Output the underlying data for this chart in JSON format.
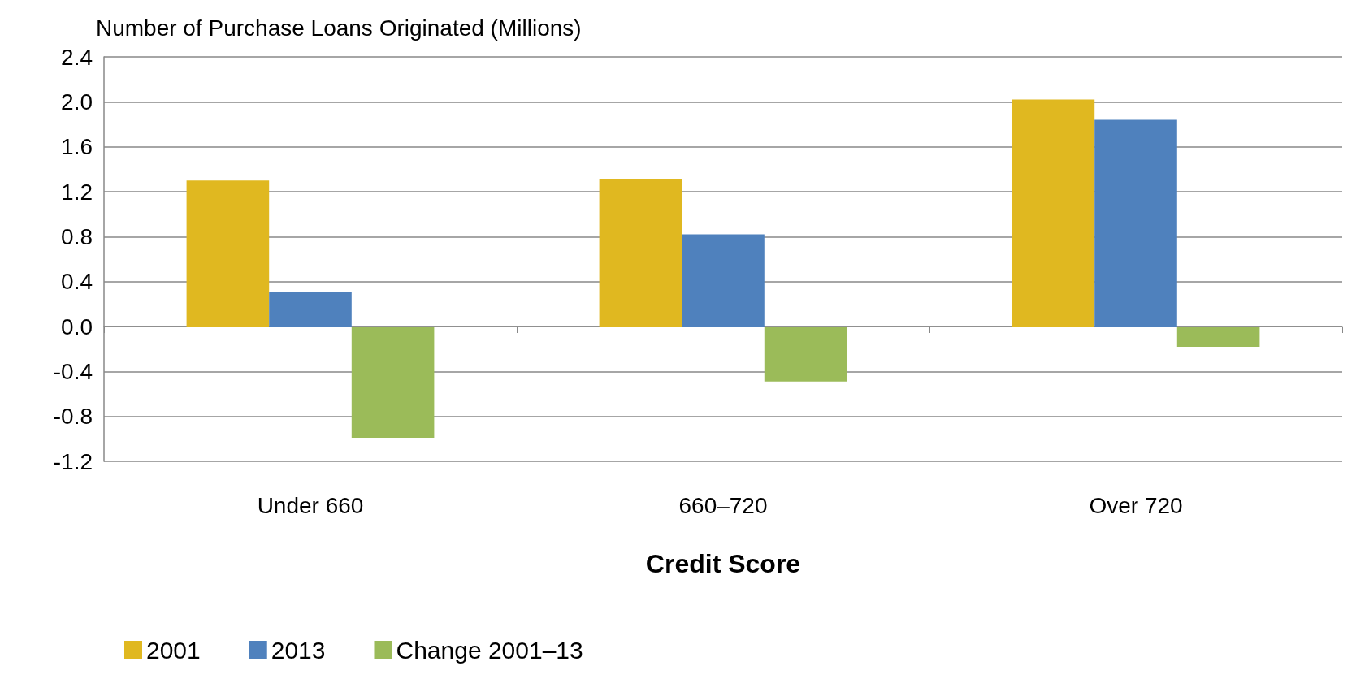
{
  "chart_data": {
    "type": "bar",
    "ylabel": "Number of Purchase Loans Originated (Millions)",
    "xlabel": "Credit Score",
    "categories": [
      "Under 660",
      "660–720",
      "Over 720"
    ],
    "series": [
      {
        "name": "2001",
        "color": "#e0b820",
        "values": [
          1.3,
          1.31,
          2.02
        ]
      },
      {
        "name": "2013",
        "color": "#4f81bd",
        "values": [
          0.31,
          0.82,
          1.84
        ]
      },
      {
        "name": "Change 2001–13",
        "color": "#9bbb59",
        "values": [
          -0.99,
          -0.49,
          -0.18
        ]
      }
    ],
    "ylim": [
      -1.2,
      2.4
    ],
    "yticks": [
      -1.2,
      -0.8,
      -0.4,
      {
        "value": 0,
        "label": "0.0"
      },
      0.4,
      0.8,
      1.2,
      1.6,
      {
        "value": 2,
        "label": "2.0"
      },
      2.4
    ],
    "grid": "y",
    "legend": "bottom left"
  }
}
